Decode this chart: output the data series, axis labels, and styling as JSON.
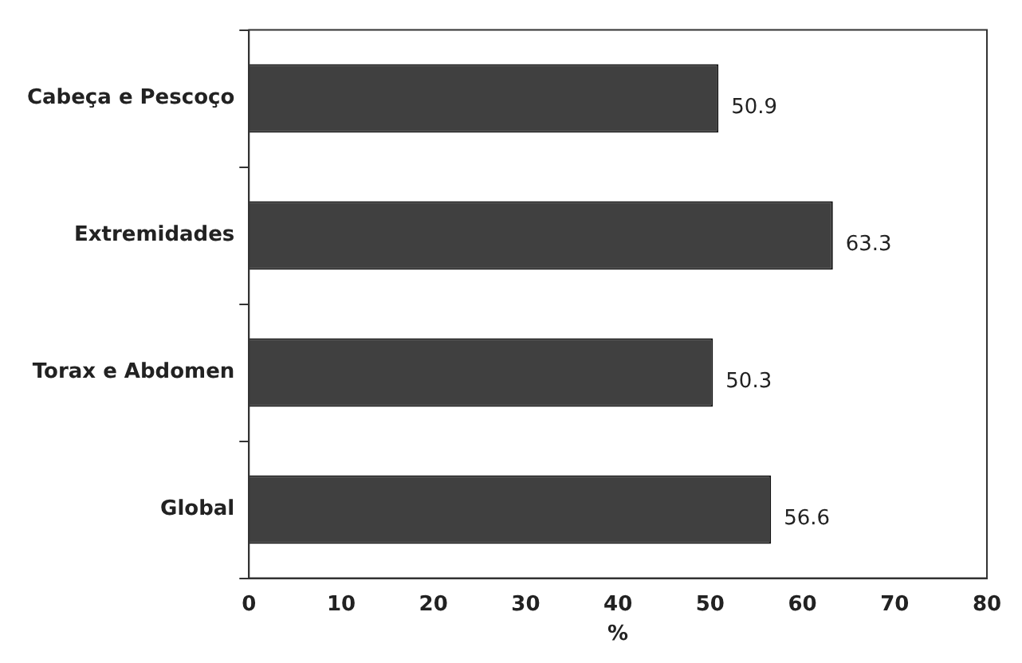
{
  "chart_data": {
    "type": "bar",
    "orientation": "horizontal",
    "categories": [
      "Cabeça e Pescoço",
      "Extremidades",
      "Torax e Abdomen",
      "Global"
    ],
    "values": [
      50.9,
      63.3,
      50.3,
      56.6
    ],
    "color": "#404040",
    "data_labels": true,
    "xlabel": "%",
    "xlim": [
      0,
      80
    ],
    "xticks": [
      0,
      10,
      20,
      30,
      40,
      50,
      60,
      70,
      80
    ],
    "grid": false,
    "legend": false
  }
}
